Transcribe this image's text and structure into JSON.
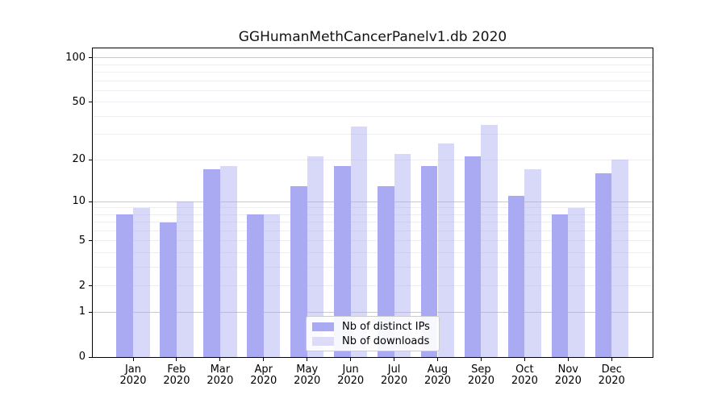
{
  "title": "GGHumanMethCancerPanelv1.db 2020",
  "colors": {
    "distinct_ips": "#aaaaf2",
    "downloads_fill": "rgba(168,168,242,0.45)",
    "downloads_swatch": "#dcdcf8",
    "grid_major": "#c9c9c9",
    "grid_minor": "#eeeef2",
    "axis": "#000000",
    "background": "#ffffff"
  },
  "chart_data": {
    "type": "bar",
    "title": "GGHumanMethCancerPanelv1.db 2020",
    "categories": [
      "Jan",
      "Feb",
      "Mar",
      "Apr",
      "May",
      "Jun",
      "Jul",
      "Aug",
      "Sep",
      "Oct",
      "Nov",
      "Dec"
    ],
    "year_label": "2020",
    "series": [
      {
        "name": "Nb of distinct IPs",
        "values": [
          8,
          7,
          17,
          8,
          13,
          18,
          13,
          18,
          21,
          11,
          8,
          16
        ]
      },
      {
        "name": "Nb of downloads",
        "values": [
          9,
          10,
          18,
          8,
          21,
          34,
          22,
          26,
          35,
          17,
          9,
          20
        ]
      }
    ],
    "xlabel": "",
    "ylabel": "",
    "yscale": "log1p",
    "ytick_values": [
      0,
      1,
      2,
      5,
      10,
      20,
      50,
      100
    ],
    "ytick_labels": [
      "0",
      "1",
      "2",
      "5",
      "10",
      "20",
      "50",
      "100"
    ],
    "minor_grid_values": [
      2,
      3,
      4,
      5,
      6,
      7,
      8,
      9,
      20,
      30,
      40,
      50,
      60,
      70,
      80,
      90
    ],
    "major_grid_values": [
      1,
      10,
      100
    ],
    "ylim": [
      0,
      116
    ],
    "grid": true,
    "legend_position": "lower center"
  }
}
